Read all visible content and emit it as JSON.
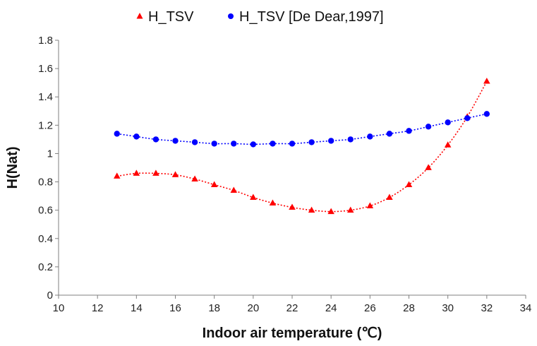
{
  "chart_data": {
    "type": "scatter",
    "xlabel": "Indoor air temperature (℃)",
    "ylabel": "H(Nat)",
    "xlim": [
      10,
      34
    ],
    "ylim": [
      0,
      1.8
    ],
    "x_ticks": [
      "10",
      "12",
      "14",
      "16",
      "18",
      "20",
      "22",
      "24",
      "26",
      "28",
      "30",
      "32",
      "34"
    ],
    "y_ticks": [
      "0",
      "0.2",
      "0.4",
      "0.6",
      "0.8",
      "1",
      "1.2",
      "1.4",
      "1.6",
      "1.8"
    ],
    "grid": false,
    "legend_position": "top",
    "trendlines": "dotted polynomial",
    "series": [
      {
        "name": "H_TSV",
        "marker": "triangle",
        "color": "#ff0000",
        "x": [
          13,
          14,
          15,
          16,
          17,
          18,
          19,
          20,
          21,
          22,
          23,
          24,
          25,
          26,
          27,
          28,
          29,
          30,
          31,
          32
        ],
        "y": [
          0.84,
          0.86,
          0.86,
          0.85,
          0.82,
          0.78,
          0.74,
          0.69,
          0.65,
          0.62,
          0.6,
          0.59,
          0.6,
          0.63,
          0.69,
          0.78,
          0.9,
          1.06,
          1.26,
          1.51
        ]
      },
      {
        "name": "H_TSV [De Dear,1997]",
        "marker": "circle",
        "color": "#0000ff",
        "x": [
          13,
          14,
          15,
          16,
          17,
          18,
          19,
          20,
          21,
          22,
          23,
          24,
          25,
          26,
          27,
          28,
          29,
          30,
          31,
          32
        ],
        "y": [
          1.14,
          1.12,
          1.1,
          1.09,
          1.08,
          1.07,
          1.07,
          1.065,
          1.07,
          1.07,
          1.08,
          1.09,
          1.1,
          1.12,
          1.14,
          1.16,
          1.19,
          1.22,
          1.25,
          1.28
        ]
      }
    ]
  }
}
